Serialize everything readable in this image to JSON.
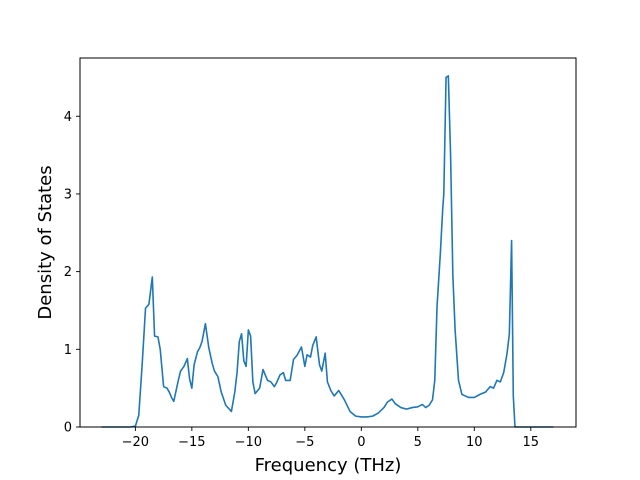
{
  "chart_data": {
    "type": "line",
    "title": "",
    "xlabel": "Frequency (THz)",
    "ylabel": "Density of States",
    "xlim": [
      -24.9,
      19.0
    ],
    "ylim": [
      0,
      4.75
    ],
    "x_ticks": [
      -20,
      -15,
      -10,
      -5,
      0,
      5,
      10,
      15
    ],
    "x_tick_labels": [
      "−20",
      "−15",
      "−10",
      "−5",
      "0",
      "5",
      "10",
      "15"
    ],
    "y_ticks": [
      0,
      1,
      2,
      3,
      4
    ],
    "y_tick_labels": [
      "0",
      "1",
      "2",
      "3",
      "4"
    ],
    "grid": false,
    "legend": "none",
    "line_color": "#1f77b4",
    "series": [
      {
        "x": [
          -23,
          -20.5,
          -20,
          -19.7,
          -19.4,
          -19.1,
          -18.8,
          -18.5,
          -18.3,
          -18.0,
          -17.8,
          -17.5,
          -17.2,
          -17.0,
          -16.8,
          -16.6,
          -16.2,
          -16.0,
          -15.7,
          -15.4,
          -15.2,
          -15.0,
          -14.8,
          -14.5,
          -14.3,
          -14.1,
          -13.8,
          -13.5,
          -13.2,
          -13.0,
          -12.7,
          -12.4,
          -12.0,
          -11.5,
          -11.2,
          -11.0,
          -10.8,
          -10.6,
          -10.4,
          -10.2,
          -10.0,
          -9.8,
          -9.6,
          -9.4,
          -9.0,
          -8.7,
          -8.3,
          -8.0,
          -7.7,
          -7.5,
          -7.2,
          -6.9,
          -6.7,
          -6.3,
          -6.0,
          -5.7,
          -5.3,
          -5.0,
          -4.8,
          -4.5,
          -4.3,
          -4.0,
          -3.7,
          -3.5,
          -3.2,
          -3.0,
          -2.7,
          -2.4,
          -2.0,
          -1.5,
          -1.0,
          -0.5,
          0,
          0.5,
          1.0,
          1.5,
          2.0,
          2.3,
          2.7,
          3.0,
          3.5,
          4.0,
          4.5,
          5.0,
          5.4,
          5.7,
          6.0,
          6.3,
          6.5,
          6.7,
          7.0,
          7.2,
          7.3,
          7.5,
          7.7,
          7.9,
          8.1,
          8.3,
          8.6,
          8.9,
          9.2,
          9.5,
          10.0,
          10.5,
          11.0,
          11.4,
          11.7,
          12.0,
          12.3,
          12.6,
          12.9,
          13.1,
          13.3,
          13.45,
          13.6,
          13.8,
          14.2,
          17.0
        ],
        "y": [
          0,
          0,
          0.01,
          0.15,
          0.8,
          1.53,
          1.58,
          1.93,
          1.17,
          1.16,
          1.0,
          0.52,
          0.5,
          0.45,
          0.38,
          0.33,
          0.6,
          0.72,
          0.78,
          0.88,
          0.62,
          0.5,
          0.8,
          0.97,
          1.02,
          1.1,
          1.33,
          1.02,
          0.82,
          0.72,
          0.65,
          0.45,
          0.28,
          0.2,
          0.45,
          0.7,
          1.1,
          1.2,
          0.85,
          0.78,
          1.25,
          1.17,
          0.58,
          0.43,
          0.5,
          0.74,
          0.6,
          0.58,
          0.52,
          0.57,
          0.67,
          0.7,
          0.6,
          0.6,
          0.87,
          0.92,
          1.03,
          0.78,
          0.93,
          0.9,
          1.05,
          1.16,
          0.8,
          0.72,
          0.95,
          0.58,
          0.47,
          0.4,
          0.47,
          0.35,
          0.2,
          0.14,
          0.13,
          0.13,
          0.14,
          0.18,
          0.25,
          0.32,
          0.36,
          0.3,
          0.25,
          0.23,
          0.25,
          0.26,
          0.29,
          0.25,
          0.28,
          0.35,
          0.6,
          1.55,
          2.25,
          2.8,
          3.0,
          4.5,
          4.52,
          3.5,
          1.95,
          1.25,
          0.6,
          0.42,
          0.4,
          0.38,
          0.38,
          0.42,
          0.45,
          0.52,
          0.5,
          0.6,
          0.58,
          0.7,
          0.95,
          1.2,
          2.4,
          0.4,
          0.0,
          0.0,
          0.0,
          0.0
        ]
      }
    ]
  }
}
